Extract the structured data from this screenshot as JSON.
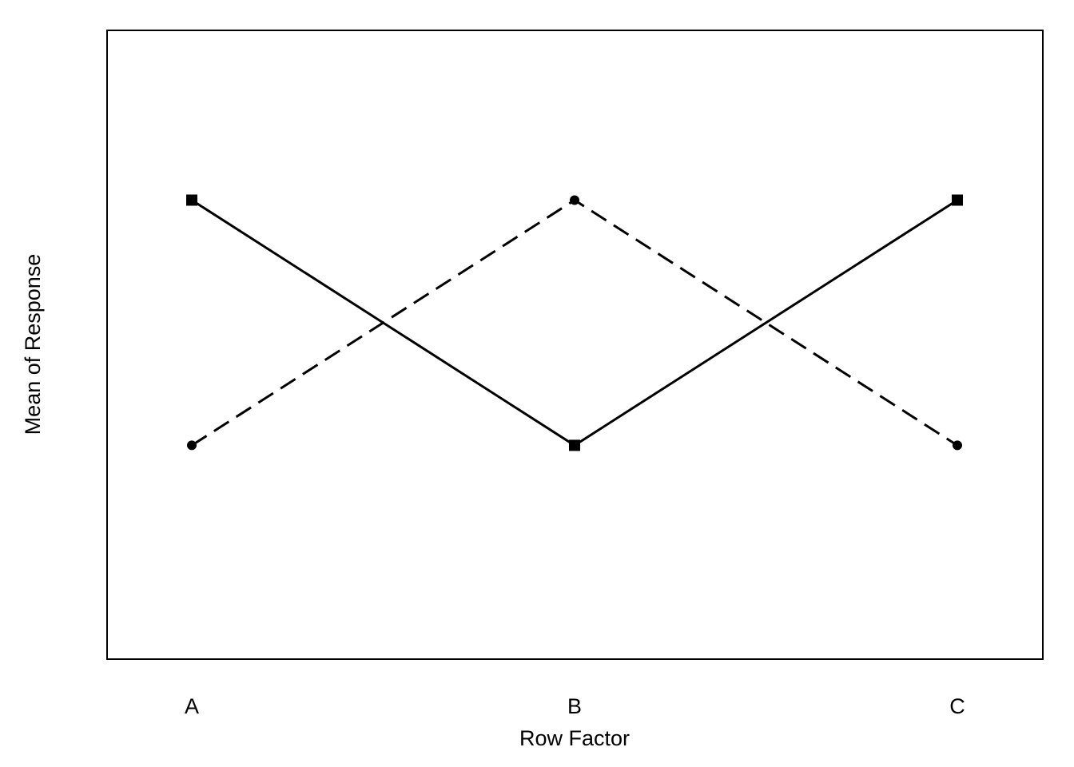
{
  "chart_data": {
    "type": "line",
    "title": "",
    "xlabel": "Row Factor",
    "ylabel": "Mean of Response",
    "categories": [
      "A",
      "B",
      "C"
    ],
    "ylim": [
      0,
      10
    ],
    "grid": false,
    "legend": "none",
    "series": [
      {
        "line_style": "solid",
        "marker": "square",
        "color": "#000000",
        "values": [
          7.3,
          3.4,
          7.3
        ]
      },
      {
        "line_style": "dashed",
        "marker": "circle",
        "color": "#000000",
        "values": [
          3.4,
          7.3,
          3.4
        ]
      }
    ]
  }
}
